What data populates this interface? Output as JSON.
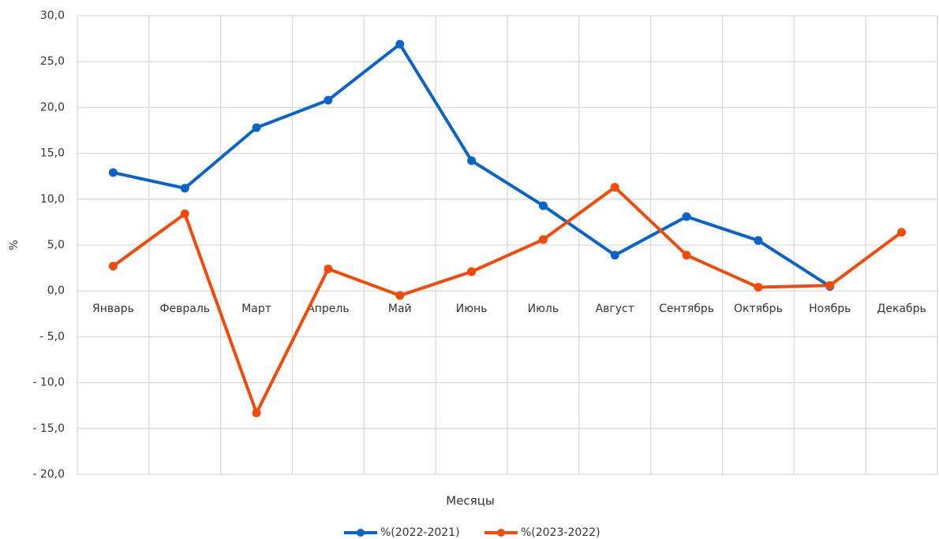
{
  "chart_data": {
    "type": "line",
    "categories": [
      "Январь",
      "Февраль",
      "Март",
      "Апрель",
      "Май",
      "Июнь",
      "Июль",
      "Август",
      "Сентябрь",
      "Октябрь",
      "Ноябрь",
      "Декабрь"
    ],
    "series": [
      {
        "name": "%(2022-2021)",
        "color": "#0a64c8",
        "values": [
          12.9,
          11.2,
          17.8,
          20.8,
          26.9,
          14.2,
          9.3,
          3.9,
          8.1,
          5.5,
          0.5,
          null
        ]
      },
      {
        "name": "%(2023-2022)",
        "color": "#f24a08",
        "values": [
          2.7,
          8.4,
          -13.3,
          2.4,
          -0.5,
          2.1,
          5.6,
          11.3,
          3.9,
          0.4,
          0.6,
          6.4
        ]
      }
    ],
    "ylim": [
      -20,
      30
    ],
    "yticks": [
      {
        "value": -20,
        "label": "- 20,0"
      },
      {
        "value": -15,
        "label": "- 15,0"
      },
      {
        "value": -10,
        "label": "- 10,0"
      },
      {
        "value": -5,
        "label": "- 5,0"
      },
      {
        "value": 0,
        "label": "0,0"
      },
      {
        "value": 5,
        "label": "5,0"
      },
      {
        "value": 10,
        "label": "10,0"
      },
      {
        "value": 15,
        "label": "15,0"
      },
      {
        "value": 20,
        "label": "20,0"
      },
      {
        "value": 25,
        "label": "25,0"
      },
      {
        "value": 30,
        "label": "30,0"
      }
    ],
    "y_label": "%",
    "x_label": "Месяцы",
    "grid": true,
    "legend": "bottom"
  }
}
